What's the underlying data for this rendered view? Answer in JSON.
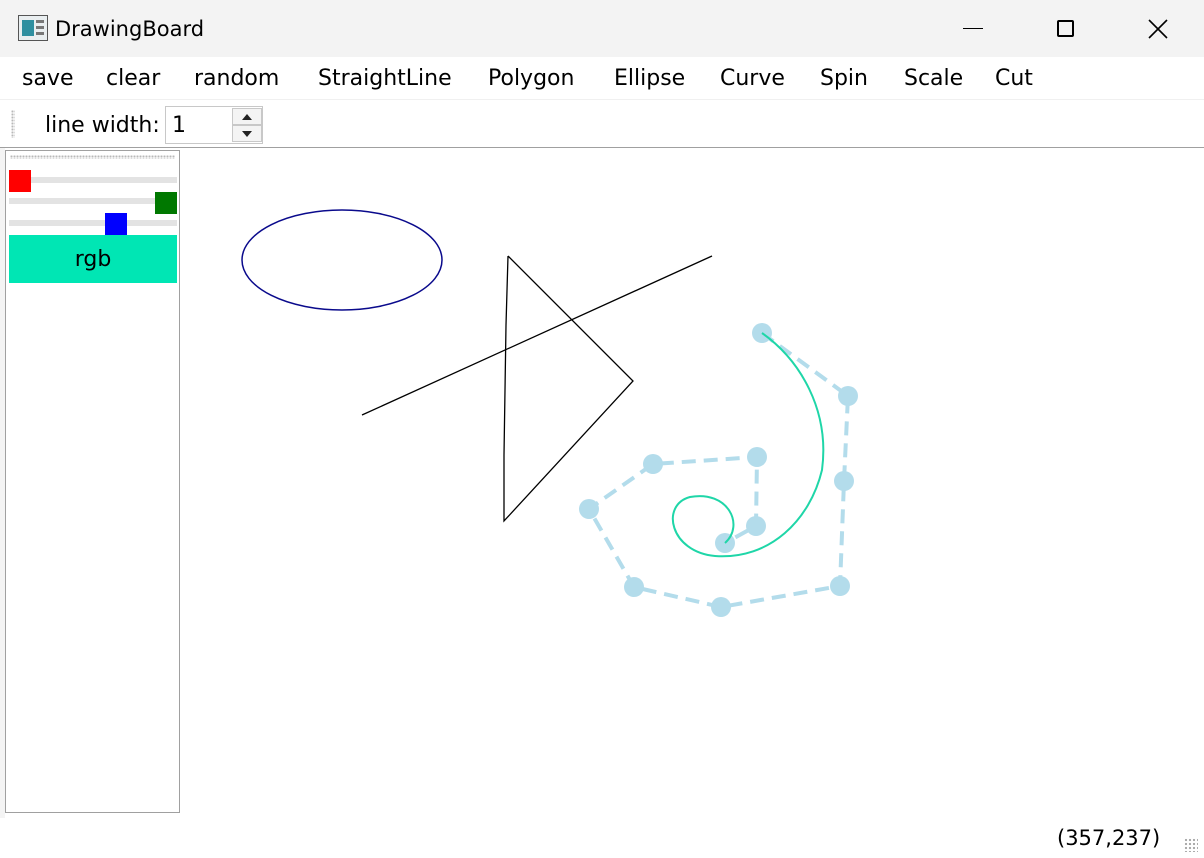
{
  "window": {
    "title": "DrawingBoard"
  },
  "menu": {
    "items": [
      {
        "label": "save"
      },
      {
        "label": "clear"
      },
      {
        "label": "random"
      },
      {
        "label": "StraightLine"
      },
      {
        "label": "Polygon"
      },
      {
        "label": "Ellipse"
      },
      {
        "label": "Curve"
      },
      {
        "label": "Spin"
      },
      {
        "label": "Scale"
      },
      {
        "label": "Cut"
      }
    ]
  },
  "toolbar": {
    "line_width_label": "line width:",
    "line_width_value": "1"
  },
  "color_panel": {
    "red_slider_icon": "red-square-handle",
    "green_slider_icon": "green-square-handle",
    "blue_slider_icon": "blue-square-handle",
    "red_level": 0.0,
    "green_level": 1.0,
    "blue_level": 0.66,
    "swatch_label": "rgb",
    "swatch_color": "#00e6b4",
    "red_color": "#ff0000",
    "green_color": "#007800",
    "blue_color": "#0000ff"
  },
  "colors": {
    "ellipse_stroke": "#0a0a8c",
    "line_stroke": "#000000",
    "curve_stroke": "#1fd6a8",
    "control_points": "#b3dceb"
  },
  "status": {
    "coords": "(357,237)"
  }
}
